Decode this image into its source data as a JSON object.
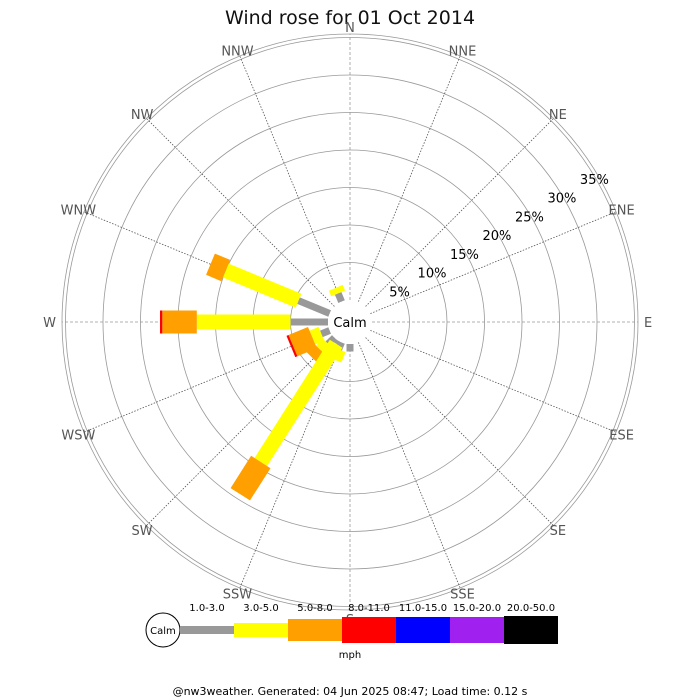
{
  "chart_data": {
    "type": "windrose",
    "title": "Wind rose for 01 Oct 2014",
    "calm_label": "Calm",
    "directions": [
      "N",
      "NNE",
      "NE",
      "ENE",
      "E",
      "ESE",
      "SE",
      "SSE",
      "S",
      "SSW",
      "SW",
      "WSW",
      "W",
      "WNW",
      "NW",
      "NNW"
    ],
    "radial_ticks": [
      "5%",
      "10%",
      "15%",
      "20%",
      "25%",
      "30%",
      "35%"
    ],
    "radial_values": [
      5,
      10,
      15,
      20,
      25,
      30,
      35
    ],
    "speed_bins": [
      {
        "label": "1.0-3.0",
        "color": "#999999"
      },
      {
        "label": "3.0-5.0",
        "color": "#ffff00"
      },
      {
        "label": "5.0-8.0",
        "color": "#ff9f00"
      },
      {
        "label": "8.0-11.0",
        "color": "#ff0000"
      },
      {
        "label": "11.0-15.0",
        "color": "#0000ff"
      },
      {
        "label": "15.0-20.0",
        "color": "#a020f0"
      },
      {
        "label": "20.0-50.0",
        "color": "#000000"
      }
    ],
    "units": "mph",
    "segments": [
      {
        "dir": "NNW",
        "values": [
          1.2,
          0.8,
          0,
          0,
          0,
          0,
          0
        ]
      },
      {
        "dir": "WNW",
        "values": [
          4.5,
          10.5,
          2.2,
          0,
          0,
          0,
          0
        ]
      },
      {
        "dir": "W",
        "values": [
          5.0,
          12.5,
          4.6,
          0.3,
          0,
          0,
          0
        ]
      },
      {
        "dir": "WSW",
        "values": [
          1.2,
          1.3,
          2.8,
          0.3,
          0,
          0,
          0
        ]
      },
      {
        "dir": "SW",
        "values": [
          1.2,
          1.3,
          1.5,
          0,
          0,
          0,
          0
        ]
      },
      {
        "dir": "SSW",
        "values": [
          1.0,
          1.5,
          0,
          0,
          0,
          0,
          0
        ]
      },
      {
        "dir": "S",
        "values": [
          1.0,
          0,
          0,
          0,
          0,
          0,
          0
        ]
      },
      {
        "dir": "SSW",
        "values": [
          0.5,
          18.7,
          5.1,
          0,
          0,
          0,
          0
        ],
        "angle_offset": 10
      }
    ]
  },
  "footer": "@nw3weather. Generated: 04 Jun 2025 08:47; Load time: 0.12 s"
}
